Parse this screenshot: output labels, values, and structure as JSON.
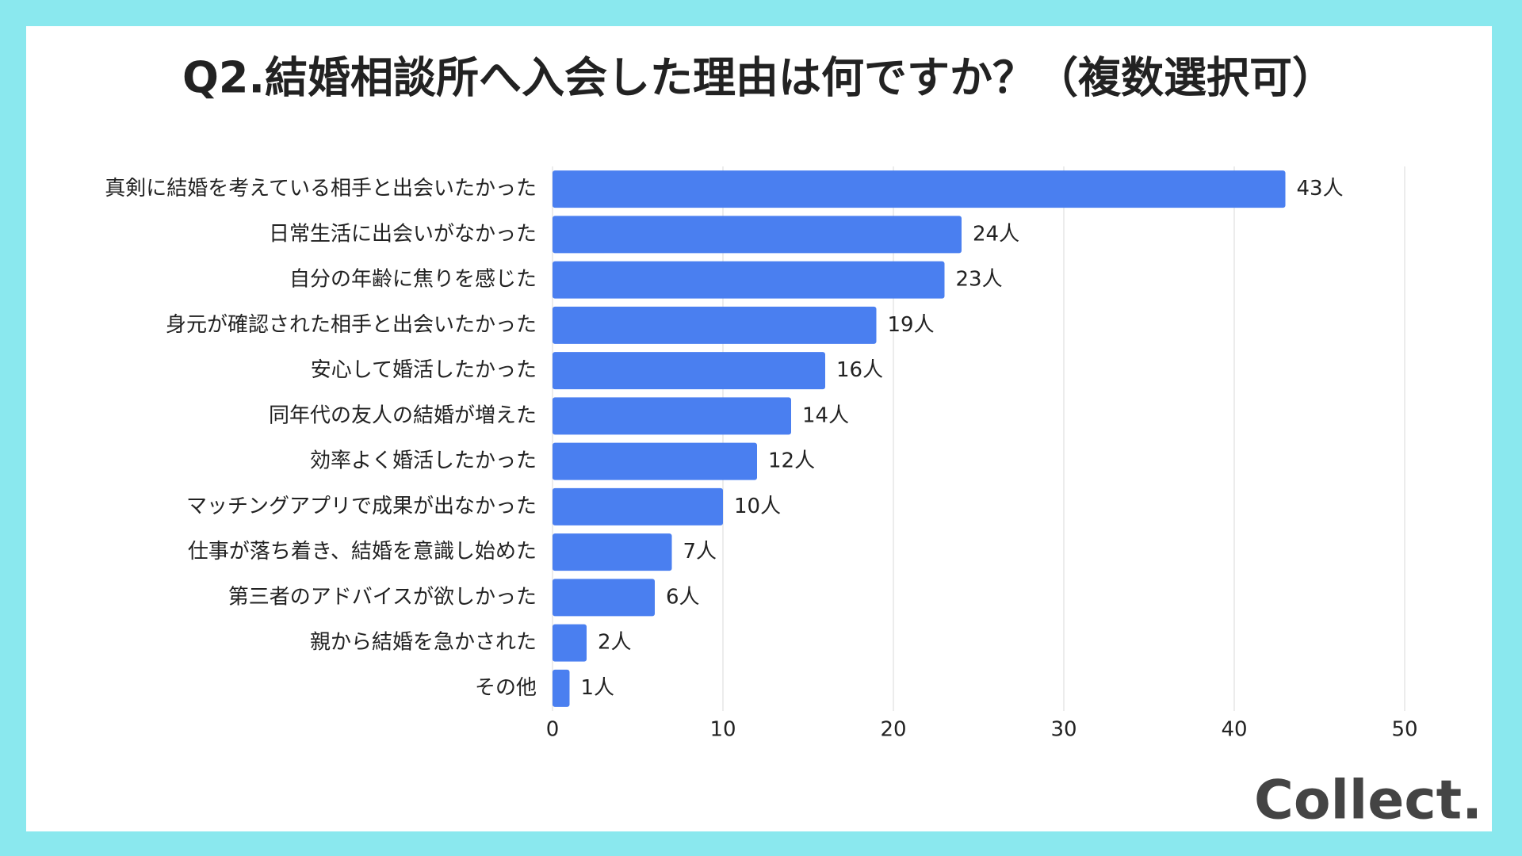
{
  "chart_data": {
    "type": "bar",
    "orientation": "horizontal",
    "title": "Q2.結婚相談所へ入会した理由は何ですか？（複数選択可）",
    "categories": [
      "真剣に結婚を考えている相手と出会いたかった",
      "日常生活に出会いがなかった",
      "自分の年齢に焦りを感じた",
      "身元が確認された相手と出会いたかった",
      "安心して婚活したかった",
      "同年代の友人の結婚が増えた",
      "効率よく婚活したかった",
      "マッチングアプリで成果が出なかった",
      "仕事が落ち着き、結婚を意識し始めた",
      "第三者のアドバイスが欲しかった",
      "親から結婚を急かされた",
      "その他"
    ],
    "values": [
      43,
      24,
      23,
      19,
      16,
      14,
      12,
      10,
      7,
      6,
      2,
      1
    ],
    "value_labels": [
      "43人",
      "24人",
      "23人",
      "19人",
      "16人",
      "14人",
      "12人",
      "10人",
      "7人",
      "6人",
      "2人",
      "1人"
    ],
    "color": "#4a7ff0",
    "xlim": [
      0,
      50
    ],
    "xticks": [
      0,
      10,
      20,
      30,
      40,
      50
    ],
    "grid": true
  },
  "logo": "Collect."
}
